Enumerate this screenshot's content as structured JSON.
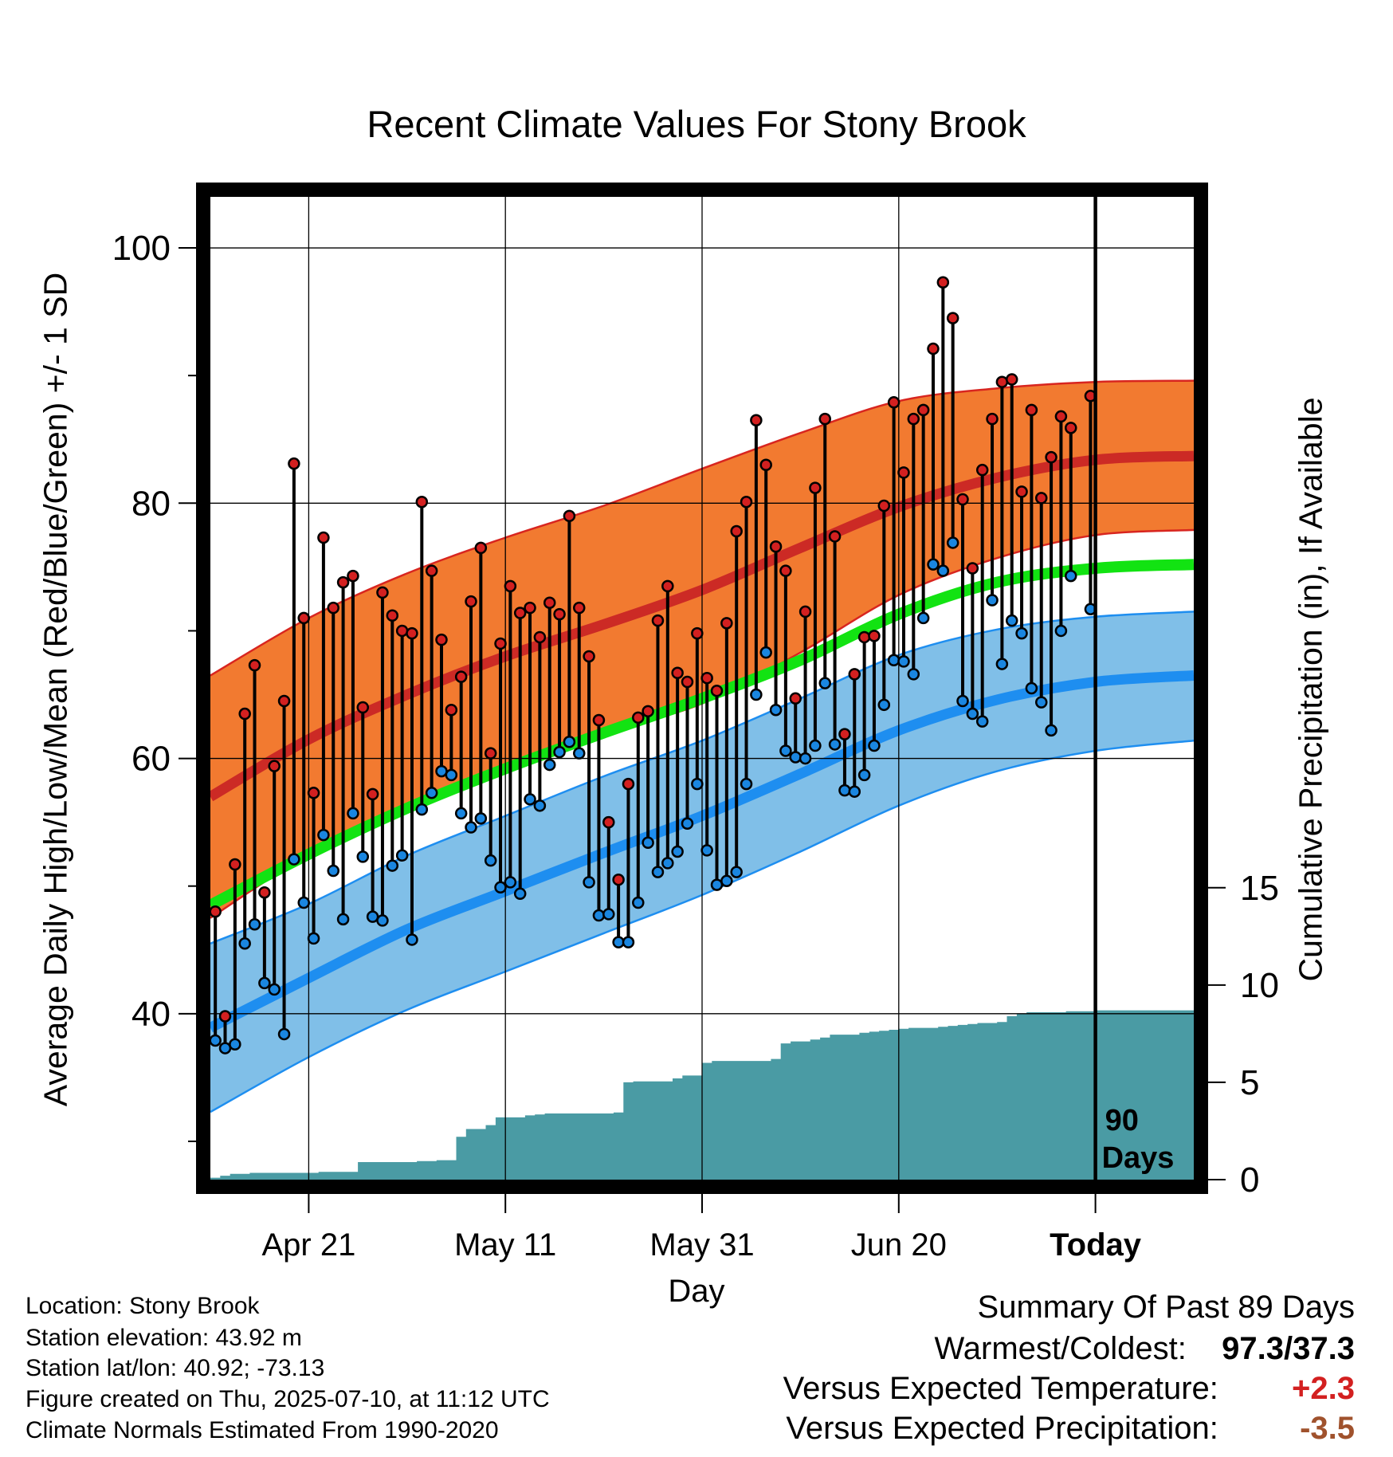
{
  "title": "Recent Climate Values For Stony Brook",
  "ylabel_left": "Average Daily High/Low/Mean (Red/Blue/Green) +/- 1 SD",
  "ylabel_right": "Cumulative Precipitation (in), If Available",
  "xlabel": "Day",
  "info": {
    "location": "Location: Stony Brook",
    "elevation": "Station elevation: 43.92 m",
    "latlon": "Station lat/lon: 40.92; -73.13",
    "created": "Figure created on Thu, 2025-07-10, at 11:12 UTC",
    "normals": "Climate Normals Estimated From 1990-2020"
  },
  "summary": {
    "heading": "Summary Of Past 89 Days",
    "warm_cold_label": "Warmest/Coldest:",
    "warm_cold_value": "97.3/37.3",
    "temp_label": "Versus Expected Temperature:",
    "temp_value": "+2.3",
    "precip_label": "Versus Expected Precipitation:",
    "precip_value": "-3.5"
  },
  "colors": {
    "high_band": "#f27a30",
    "high_mean": "#cc2a25",
    "high_edge": "#d8251f",
    "low_band": "#80bfe8",
    "low_mean": "#1e8ef0",
    "low_edge": "#1e8ef0",
    "mean_line": "#12e312",
    "precip_fill": "#4a9ba4",
    "high_dot": "#d32020",
    "low_dot": "#1a86e0",
    "frame": "#000000"
  },
  "chart_data": {
    "type": "line",
    "x_axis": {
      "tick_labels": [
        "Apr 21",
        "May 11",
        "May 31",
        "Jun 20",
        "Today"
      ],
      "tick_day_index": [
        10,
        30,
        50,
        70,
        90
      ],
      "range_day_index": [
        0,
        100
      ]
    },
    "y_left": {
      "ticks": [
        40,
        60,
        80,
        100
      ],
      "tick_labels": [
        "40",
        "60",
        "80",
        "100"
      ],
      "range": [
        27,
        104
      ]
    },
    "y_right": {
      "ticks": [
        0,
        5,
        10,
        15
      ],
      "tick_labels": [
        "0",
        "5",
        "10",
        "15"
      ],
      "range": [
        0,
        50.5
      ]
    },
    "today_marker": {
      "day_index": 90,
      "label_line1": "90",
      "label_line2": "Days"
    },
    "normals": {
      "day_index": [
        0,
        10,
        20,
        30,
        40,
        50,
        60,
        70,
        80,
        90,
        100
      ],
      "high_mean": [
        57.0,
        61.5,
        65.0,
        68.0,
        70.5,
        73.2,
        76.5,
        79.7,
        82.0,
        83.4,
        83.7
      ],
      "high_upper": [
        66.5,
        71.0,
        74.5,
        77.3,
        79.8,
        82.7,
        85.5,
        88.0,
        89.0,
        89.5,
        89.6
      ],
      "high_lower": [
        47.5,
        52.5,
        56.3,
        59.3,
        62.0,
        64.3,
        68.3,
        72.8,
        75.7,
        77.5,
        77.9
      ],
      "mean": [
        48.5,
        52.5,
        56.1,
        59.2,
        62.0,
        64.7,
        67.7,
        71.3,
        73.8,
        74.9,
        75.2
      ],
      "low_mean": [
        38.9,
        42.8,
        46.6,
        49.6,
        52.6,
        55.5,
        58.8,
        62.2,
        64.6,
        66.0,
        66.5
      ],
      "low_upper": [
        45.5,
        48.6,
        52.4,
        55.5,
        58.6,
        61.4,
        64.7,
        68.1,
        70.1,
        71.1,
        71.5
      ],
      "low_lower": [
        32.3,
        36.6,
        40.3,
        43.3,
        46.3,
        49.3,
        52.7,
        56.3,
        59.0,
        60.6,
        61.4
      ]
    },
    "series": [
      {
        "name": "Daily High",
        "day_index": [
          0,
          1,
          2,
          3,
          4,
          5,
          6,
          7,
          8,
          9,
          10,
          11,
          12,
          13,
          14,
          15,
          16,
          17,
          18,
          19,
          20,
          21,
          22,
          23,
          24,
          25,
          26,
          27,
          28,
          29,
          30,
          31,
          32,
          33,
          34,
          35,
          36,
          37,
          38,
          39,
          40,
          41,
          42,
          43,
          44,
          45,
          46,
          47,
          48,
          49,
          50,
          51,
          52,
          53,
          54,
          55,
          56,
          57,
          58,
          59,
          60,
          61,
          62,
          63,
          64,
          65,
          66,
          67,
          68,
          69,
          70,
          71,
          72,
          73,
          74,
          75,
          76,
          77,
          78,
          79,
          80,
          81,
          82,
          83,
          84,
          85,
          86,
          87,
          88,
          89
        ],
        "values": [
          48.0,
          39.8,
          51.7,
          63.5,
          67.3,
          49.5,
          59.4,
          64.5,
          83.1,
          71.0,
          57.3,
          77.3,
          71.8,
          73.8,
          74.3,
          64.0,
          57.2,
          73.0,
          71.2,
          70.0,
          69.8,
          80.1,
          74.7,
          69.3,
          63.8,
          66.4,
          72.3,
          76.5,
          60.4,
          69.0,
          73.5,
          71.4,
          71.8,
          69.5,
          72.2,
          71.3,
          79.0,
          71.8,
          68.0,
          63.0,
          55.0,
          50.5,
          58.0,
          63.2,
          63.7,
          70.8,
          73.5,
          66.7,
          66.0,
          69.8,
          66.3,
          65.3,
          70.6,
          77.8,
          80.1,
          86.5,
          83.0,
          76.6,
          74.7,
          64.7,
          71.5,
          81.2,
          86.6,
          77.4,
          61.9,
          66.6,
          69.5,
          69.6,
          79.8,
          87.9,
          82.4,
          86.6,
          87.3,
          92.1,
          97.3,
          94.5,
          80.3,
          74.9,
          82.6,
          86.6,
          89.5,
          89.7,
          80.9,
          87.3,
          80.4,
          83.6,
          86.8,
          85.9,
          null,
          88.4
        ]
      },
      {
        "name": "Daily Low",
        "day_index": [
          0,
          1,
          2,
          3,
          4,
          5,
          6,
          7,
          8,
          9,
          10,
          11,
          12,
          13,
          14,
          15,
          16,
          17,
          18,
          19,
          20,
          21,
          22,
          23,
          24,
          25,
          26,
          27,
          28,
          29,
          30,
          31,
          32,
          33,
          34,
          35,
          36,
          37,
          38,
          39,
          40,
          41,
          42,
          43,
          44,
          45,
          46,
          47,
          48,
          49,
          50,
          51,
          52,
          53,
          54,
          55,
          56,
          57,
          58,
          59,
          60,
          61,
          62,
          63,
          64,
          65,
          66,
          67,
          68,
          69,
          70,
          71,
          72,
          73,
          74,
          75,
          76,
          77,
          78,
          79,
          80,
          81,
          82,
          83,
          84,
          85,
          86,
          87,
          88,
          89
        ],
        "values": [
          37.9,
          37.3,
          37.6,
          45.5,
          47.0,
          42.4,
          41.9,
          38.4,
          52.1,
          48.7,
          45.9,
          54.0,
          51.2,
          47.4,
          55.7,
          52.3,
          47.6,
          47.3,
          51.6,
          52.4,
          45.8,
          56.0,
          57.3,
          59.0,
          58.7,
          55.7,
          54.6,
          55.3,
          52.0,
          49.9,
          50.3,
          49.4,
          56.8,
          56.3,
          59.5,
          60.5,
          61.3,
          60.4,
          50.3,
          47.7,
          47.8,
          45.6,
          45.6,
          48.7,
          53.4,
          51.1,
          51.8,
          52.7,
          54.9,
          58.0,
          52.8,
          50.1,
          50.4,
          51.1,
          58.0,
          65.0,
          68.3,
          63.8,
          60.6,
          60.1,
          60.0,
          61.0,
          65.9,
          61.1,
          57.5,
          57.4,
          58.7,
          61.0,
          64.2,
          67.7,
          67.6,
          66.6,
          71.0,
          75.2,
          74.7,
          76.9,
          64.5,
          63.5,
          62.9,
          72.4,
          67.4,
          70.8,
          69.8,
          65.5,
          64.4,
          62.2,
          70.0,
          74.3,
          null,
          71.7
        ]
      }
    ],
    "precipitation": {
      "name": "Cumulative Precipitation (in)",
      "day_index": [
        0,
        1,
        2,
        3,
        4,
        5,
        6,
        7,
        8,
        9,
        10,
        11,
        12,
        13,
        14,
        15,
        16,
        17,
        18,
        19,
        20,
        21,
        22,
        23,
        24,
        25,
        26,
        27,
        28,
        29,
        30,
        31,
        32,
        33,
        34,
        35,
        36,
        37,
        38,
        39,
        40,
        41,
        42,
        43,
        44,
        45,
        46,
        47,
        48,
        49,
        50,
        51,
        52,
        53,
        54,
        55,
        56,
        57,
        58,
        59,
        60,
        61,
        62,
        63,
        64,
        65,
        66,
        67,
        68,
        69,
        70,
        71,
        72,
        73,
        74,
        75,
        76,
        77,
        78,
        79,
        80,
        81,
        82,
        83,
        84,
        85,
        86,
        87,
        88,
        89,
        90,
        100
      ],
      "values": [
        0.1,
        0.2,
        0.3,
        0.3,
        0.35,
        0.35,
        0.35,
        0.35,
        0.35,
        0.35,
        0.35,
        0.4,
        0.4,
        0.4,
        0.4,
        0.9,
        0.9,
        0.9,
        0.9,
        0.9,
        0.9,
        0.95,
        0.95,
        1.0,
        1.0,
        2.2,
        2.6,
        2.6,
        2.8,
        3.2,
        3.2,
        3.2,
        3.3,
        3.35,
        3.4,
        3.4,
        3.4,
        3.4,
        3.4,
        3.4,
        3.4,
        3.45,
        5.0,
        5.05,
        5.05,
        5.05,
        5.05,
        5.2,
        5.35,
        5.35,
        6.0,
        6.1,
        6.1,
        6.1,
        6.1,
        6.1,
        6.1,
        6.2,
        7.0,
        7.1,
        7.1,
        7.2,
        7.3,
        7.45,
        7.45,
        7.45,
        7.55,
        7.6,
        7.65,
        7.7,
        7.75,
        7.8,
        7.8,
        7.8,
        7.85,
        7.9,
        7.95,
        8.0,
        8.05,
        8.05,
        8.1,
        8.4,
        8.5,
        8.6,
        8.6,
        8.6,
        8.6,
        8.65,
        8.65,
        8.65,
        8.7,
        8.7
      ]
    }
  }
}
